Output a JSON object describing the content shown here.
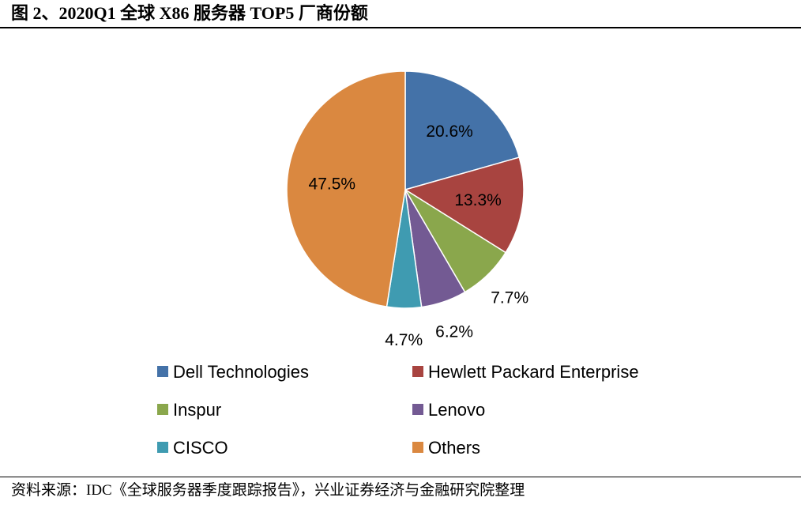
{
  "page": {
    "title": "图 2、2020Q1 全球 X86 服务器 TOP5 厂商份额",
    "source": "资料来源：IDC《全球服务器季度跟踪报告》，兴业证券经济与金融研究院整理"
  },
  "chart_data": {
    "type": "pie",
    "title": "",
    "legend_position": "bottom",
    "slices": [
      {
        "name": "Dell Technologies",
        "value": 20.6,
        "label": "20.6%",
        "color": "#4472a8"
      },
      {
        "name": "Hewlett Packard Enterprise",
        "value": 13.3,
        "label": "13.3%",
        "color": "#a84440"
      },
      {
        "name": "Inspur",
        "value": 7.7,
        "label": "7.7%",
        "color": "#8aa74c"
      },
      {
        "name": "Lenovo",
        "value": 6.2,
        "label": "6.2%",
        "color": "#735a93"
      },
      {
        "name": "CISCO",
        "value": 4.7,
        "label": "4.7%",
        "color": "#3f9bb1"
      },
      {
        "name": "Others",
        "value": 47.5,
        "label": "47.5%",
        "color": "#da8840"
      }
    ]
  }
}
